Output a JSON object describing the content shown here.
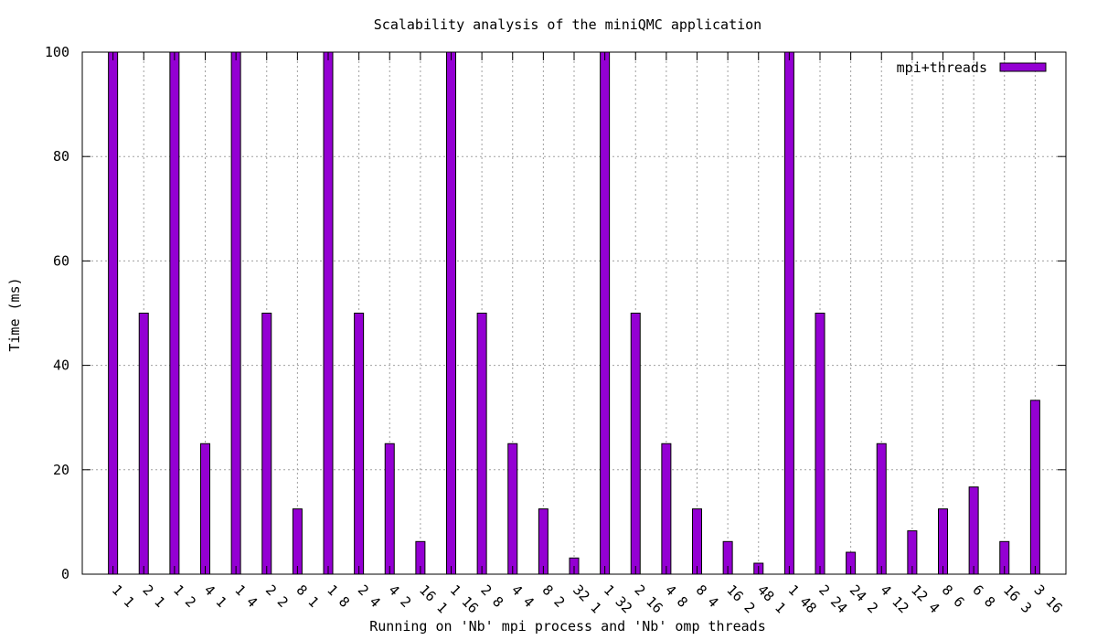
{
  "chart_data": {
    "type": "bar",
    "title": "Scalability analysis of the miniQMC application",
    "xlabel": "Running on 'Nb' mpi process and 'Nb' omp threads",
    "ylabel": "Time (ms)",
    "ylim": [
      0,
      100
    ],
    "yticks": [
      0,
      20,
      40,
      60,
      80,
      100
    ],
    "grid": true,
    "legend_position": "top-right",
    "bar_color": "#9400d3",
    "categories": [
      "1 1",
      "2 1",
      "1 2",
      "4 1",
      "1 4",
      "2 2",
      "8 1",
      "1 8",
      "2 4",
      "4 2",
      "16 1",
      "1 16",
      "2 8",
      "4 4",
      "8 2",
      "32 1",
      "1 32",
      "2 16",
      "4 8",
      "8 4",
      "16 2",
      "48 1",
      "1 48",
      "2 24",
      "24 2",
      "4 12",
      "12 4",
      "8 6",
      "6 8",
      "16 3",
      "3 16"
    ],
    "series": [
      {
        "name": "mpi+threads",
        "values": [
          100,
          50,
          100,
          25,
          100,
          50,
          12.5,
          100,
          50,
          25,
          6.25,
          100,
          50,
          25,
          12.5,
          3.1,
          100,
          50,
          25,
          12.5,
          6.25,
          2.1,
          100,
          50,
          4.2,
          25,
          8.3,
          12.5,
          16.7,
          6.25,
          33.3
        ]
      }
    ]
  }
}
